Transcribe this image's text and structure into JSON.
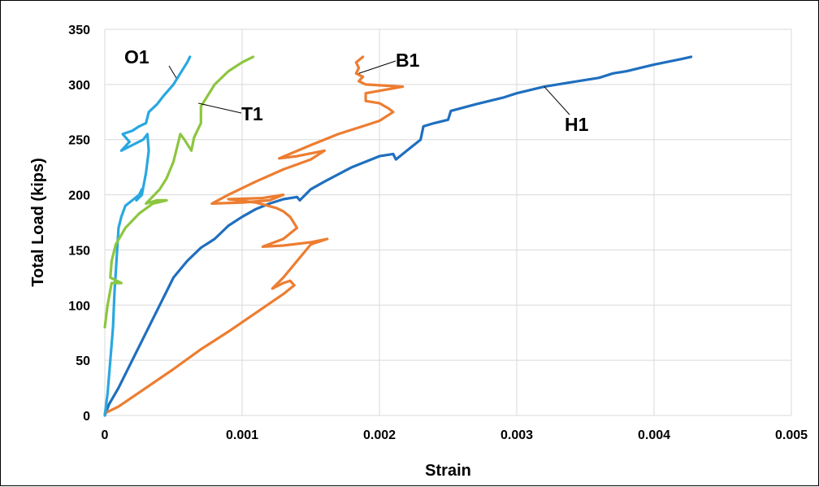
{
  "chart_data": {
    "type": "line",
    "xlabel": "Strain",
    "ylabel": "Total Load (kips)",
    "xlim": [
      0,
      0.005
    ],
    "ylim": [
      0,
      350
    ],
    "grid": true,
    "legend": "inline labels",
    "x_ticks": [
      "0",
      "0.001",
      "0.002",
      "0.003",
      "0.004",
      "0.005"
    ],
    "y_ticks": [
      "0",
      "50",
      "100",
      "150",
      "200",
      "250",
      "300",
      "350"
    ],
    "series": [
      {
        "name": "H1",
        "color": "#1f6fbf",
        "points": [
          [
            0,
            0
          ],
          [
            3e-05,
            10
          ],
          [
            0.0001,
            25
          ],
          [
            0.0002,
            50
          ],
          [
            0.0003,
            75
          ],
          [
            0.0004,
            100
          ],
          [
            0.0005,
            125
          ],
          [
            0.0006,
            140
          ],
          [
            0.0007,
            152
          ],
          [
            0.0008,
            160
          ],
          [
            0.0009,
            172
          ],
          [
            0.001,
            180
          ],
          [
            0.0011,
            187
          ],
          [
            0.0012,
            192
          ],
          [
            0.0013,
            196
          ],
          [
            0.0014,
            198
          ],
          [
            0.00142,
            195
          ],
          [
            0.0015,
            205
          ],
          [
            0.0016,
            212
          ],
          [
            0.0018,
            225
          ],
          [
            0.002,
            235
          ],
          [
            0.0021,
            237
          ],
          [
            0.00212,
            232
          ],
          [
            0.0022,
            240
          ],
          [
            0.0023,
            250
          ],
          [
            0.00232,
            262
          ],
          [
            0.0024,
            265
          ],
          [
            0.0025,
            268
          ],
          [
            0.00252,
            276
          ],
          [
            0.0027,
            282
          ],
          [
            0.0029,
            288
          ],
          [
            0.003,
            292
          ],
          [
            0.0032,
            298
          ],
          [
            0.0034,
            302
          ],
          [
            0.0036,
            306
          ],
          [
            0.0037,
            310
          ],
          [
            0.0038,
            312
          ],
          [
            0.004,
            318
          ],
          [
            0.0042,
            323
          ],
          [
            0.00427,
            325
          ]
        ]
      },
      {
        "name": "B1",
        "color": "#ed7d31",
        "points": [
          [
            0,
            2
          ],
          [
            0.0001,
            8
          ],
          [
            0.0003,
            25
          ],
          [
            0.0005,
            42
          ],
          [
            0.0007,
            60
          ],
          [
            0.0009,
            76
          ],
          [
            0.0011,
            93
          ],
          [
            0.0013,
            110
          ],
          [
            0.00138,
            118
          ],
          [
            0.00135,
            122
          ],
          [
            0.0013,
            120
          ],
          [
            0.00122,
            115
          ],
          [
            0.0013,
            125
          ],
          [
            0.0014,
            140
          ],
          [
            0.0015,
            155
          ],
          [
            0.00162,
            160
          ],
          [
            0.0015,
            157
          ],
          [
            0.0013,
            154
          ],
          [
            0.00115,
            153
          ],
          [
            0.0013,
            160
          ],
          [
            0.0014,
            170
          ],
          [
            0.00135,
            180
          ],
          [
            0.0013,
            185
          ],
          [
            0.00125,
            188
          ],
          [
            0.0011,
            193
          ],
          [
            0.0009,
            196
          ],
          [
            0.00115,
            197
          ],
          [
            0.0013,
            200
          ],
          [
            0.0012,
            195
          ],
          [
            0.001,
            193
          ],
          [
            0.00078,
            192
          ],
          [
            0.0009,
            200
          ],
          [
            0.0011,
            212
          ],
          [
            0.0013,
            223
          ],
          [
            0.0015,
            232
          ],
          [
            0.0016,
            240
          ],
          [
            0.0014,
            235
          ],
          [
            0.00127,
            233
          ],
          [
            0.0015,
            245
          ],
          [
            0.0017,
            255
          ],
          [
            0.0019,
            263
          ],
          [
            0.002,
            267
          ],
          [
            0.0021,
            275
          ],
          [
            0.00207,
            278
          ],
          [
            0.002,
            283
          ],
          [
            0.0019,
            285
          ],
          [
            0.0019,
            292
          ],
          [
            0.00217,
            298
          ],
          [
            0.0019,
            300
          ],
          [
            0.00185,
            303
          ],
          [
            0.00188,
            307
          ],
          [
            0.00183,
            310
          ],
          [
            0.00185,
            315
          ],
          [
            0.00183,
            320
          ],
          [
            0.00188,
            325
          ]
        ]
      },
      {
        "name": "O1",
        "color": "#29a8e0",
        "points": [
          [
            0,
            0
          ],
          [
            2e-05,
            20
          ],
          [
            4e-05,
            50
          ],
          [
            6e-05,
            80
          ],
          [
            7e-05,
            110
          ],
          [
            9e-05,
            150
          ],
          [
            0.0001,
            170
          ],
          [
            0.00012,
            180
          ],
          [
            0.00015,
            190
          ],
          [
            0.0002,
            195
          ],
          [
            0.00025,
            200
          ],
          [
            0.00027,
            205
          ],
          [
            0.00023,
            195
          ],
          [
            0.00027,
            200
          ],
          [
            0.0003,
            220
          ],
          [
            0.00032,
            240
          ],
          [
            0.00031,
            255
          ],
          [
            0.00028,
            250
          ],
          [
            0.0002,
            245
          ],
          [
            0.00012,
            240
          ],
          [
            0.00018,
            248
          ],
          [
            0.00013,
            255
          ],
          [
            0.0002,
            258
          ],
          [
            0.00025,
            262
          ],
          [
            0.0003,
            265
          ],
          [
            0.00032,
            275
          ],
          [
            0.00038,
            282
          ],
          [
            0.00043,
            290
          ],
          [
            0.0005,
            300
          ],
          [
            0.00055,
            310
          ],
          [
            0.0006,
            320
          ],
          [
            0.00062,
            325
          ]
        ]
      },
      {
        "name": "T1",
        "color": "#8cc63f",
        "points": [
          [
            0,
            80
          ],
          [
            2e-05,
            100
          ],
          [
            5e-05,
            120
          ],
          [
            0.00012,
            120
          ],
          [
            4e-05,
            125
          ],
          [
            5e-05,
            140
          ],
          [
            8e-05,
            155
          ],
          [
            0.00015,
            170
          ],
          [
            0.00025,
            183
          ],
          [
            0.00035,
            192
          ],
          [
            0.00045,
            195
          ],
          [
            0.00038,
            195
          ],
          [
            0.0003,
            192
          ],
          [
            0.0004,
            205
          ],
          [
            0.00045,
            215
          ],
          [
            0.0005,
            230
          ],
          [
            0.00053,
            245
          ],
          [
            0.00055,
            255
          ],
          [
            0.00058,
            250
          ],
          [
            0.00063,
            240
          ],
          [
            0.00065,
            252
          ],
          [
            0.0007,
            265
          ],
          [
            0.0007,
            280
          ],
          [
            0.00075,
            290
          ],
          [
            0.0008,
            300
          ],
          [
            0.0009,
            312
          ],
          [
            0.001,
            320
          ],
          [
            0.00108,
            325
          ]
        ]
      }
    ],
    "annotations": [
      {
        "text": "O1",
        "series": "O1"
      },
      {
        "text": "T1",
        "series": "T1"
      },
      {
        "text": "B1",
        "series": "B1"
      },
      {
        "text": "H1",
        "series": "H1"
      }
    ]
  }
}
